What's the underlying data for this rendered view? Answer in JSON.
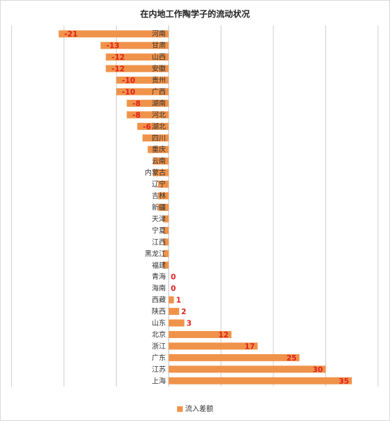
{
  "chart_data": {
    "type": "bar",
    "orientation": "horizontal",
    "title": "在内地工作陶学子的流动状况",
    "categories": [
      "河南",
      "甘肃",
      "山西",
      "安徽",
      "贵州",
      "广西",
      "湖南",
      "河北",
      "湖北",
      "四川",
      "重庆",
      "云南",
      "内蒙古",
      "辽宁",
      "吉林",
      "新疆",
      "天津",
      "宁夏",
      "江西",
      "黑龙江",
      "福建",
      "青海",
      "海南",
      "西藏",
      "陕西",
      "山东",
      "北京",
      "浙江",
      "广东",
      "江苏",
      "上海"
    ],
    "series": [
      {
        "name": "流入差额",
        "values": [
          -21,
          -13,
          -12,
          -12,
          -10,
          -10,
          -8,
          -8,
          -6,
          -5,
          -4,
          -3,
          -3,
          -2,
          -2,
          -2,
          -1,
          -1,
          -1,
          -1,
          -1,
          0,
          0,
          1,
          2,
          3,
          12,
          17,
          25,
          30,
          35
        ],
        "value_labels": [
          "-21",
          "-13",
          "-12",
          "-12",
          "-10",
          "-10",
          "-8",
          "-8",
          "-6",
          "",
          "",
          "",
          "",
          "",
          "",
          "",
          "",
          "",
          "",
          "",
          "",
          "0",
          "0",
          "1",
          "2",
          "3",
          "12",
          "17",
          "25",
          "30",
          "35"
        ]
      }
    ],
    "xlim": [
      -30,
      40
    ],
    "grid": true,
    "legend_position": "bottom",
    "colors": {
      "bar": "#f0934a",
      "value_label": "#e02020",
      "grid": "#d0d0d0"
    }
  },
  "legend": {
    "label": "流入差额"
  }
}
